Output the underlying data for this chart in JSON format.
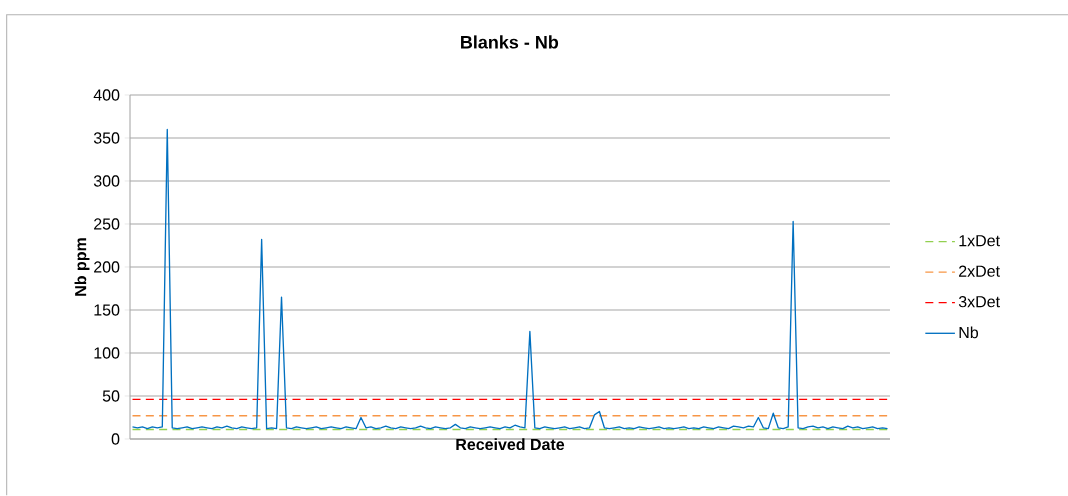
{
  "chart_data": {
    "type": "line",
    "title": "Blanks - Nb",
    "xlabel": "Received Date",
    "ylabel": "Nb ppm",
    "categories": [
      null,
      null,
      null,
      null,
      null,
      null,
      null,
      null,
      null,
      null,
      null,
      null,
      null,
      null,
      null,
      null,
      null,
      null,
      null,
      null,
      null,
      null,
      null,
      null,
      null,
      null,
      null,
      null,
      null,
      null,
      null,
      null,
      null,
      null,
      null,
      null,
      null,
      null,
      null,
      null,
      null,
      null,
      null,
      null,
      null,
      null,
      null,
      null,
      null,
      null,
      null,
      null,
      null,
      null,
      null,
      null,
      null,
      null,
      null,
      null,
      null,
      null,
      null,
      null,
      null,
      null,
      null,
      null,
      null,
      null,
      null,
      null,
      null,
      null,
      null,
      null,
      null,
      null,
      null,
      null,
      null,
      null,
      null,
      null,
      null,
      null,
      null,
      null,
      null,
      null,
      null,
      null,
      null,
      null,
      null,
      null,
      null,
      null,
      null,
      null,
      null,
      null,
      null,
      null,
      null,
      null,
      null,
      null,
      null,
      null,
      null,
      null,
      null,
      null,
      null,
      null,
      null,
      null,
      null,
      null,
      null,
      null,
      null,
      null,
      null,
      null,
      null,
      null,
      null,
      null,
      null,
      null,
      null,
      null,
      null,
      null,
      null,
      null,
      null,
      null,
      null,
      null,
      null,
      null,
      null,
      null,
      null,
      null,
      null,
      null,
      null,
      null,
      null
    ],
    "series": [
      {
        "name": "1xDet",
        "color": "#92d050",
        "line_style": "dashed",
        "values": [
          11,
          11,
          11,
          11,
          11,
          11,
          11,
          11,
          11,
          11,
          11,
          11,
          11,
          11,
          11,
          11,
          11,
          11,
          11,
          11,
          11,
          11,
          11,
          11,
          11,
          11,
          11,
          11,
          11,
          11,
          11,
          11,
          11,
          11,
          11,
          11,
          11,
          11,
          11,
          11,
          11,
          11,
          11,
          11,
          11,
          11,
          11,
          11,
          11,
          11,
          11,
          11,
          11,
          11,
          11,
          11,
          11,
          11,
          11,
          11,
          11,
          11,
          11,
          11,
          11,
          11,
          11,
          11,
          11,
          11,
          11,
          11,
          11,
          11,
          11,
          11,
          11,
          11,
          11,
          11,
          11,
          11,
          11,
          11,
          11,
          11,
          11,
          11,
          11,
          11,
          11,
          11,
          11,
          11,
          11,
          11,
          11,
          11,
          11,
          11,
          11,
          11,
          11,
          11,
          11,
          11,
          11,
          11,
          11,
          11,
          11,
          11,
          11,
          11,
          11,
          11,
          11,
          11,
          11,
          11,
          11,
          11,
          11,
          11,
          11,
          11,
          11,
          11,
          11,
          11,
          11,
          11,
          11,
          11,
          11,
          11,
          11,
          11,
          11,
          11,
          11,
          11,
          11,
          11,
          11,
          11,
          11,
          11,
          11,
          11,
          11,
          11,
          11
        ]
      },
      {
        "name": "2xDet",
        "color": "#f79646",
        "line_style": "dashed",
        "values": [
          27,
          27,
          27,
          27,
          27,
          27,
          27,
          27,
          27,
          27,
          27,
          27,
          27,
          27,
          27,
          27,
          27,
          27,
          27,
          27,
          27,
          27,
          27,
          27,
          27,
          27,
          27,
          27,
          27,
          27,
          27,
          27,
          27,
          27,
          27,
          27,
          27,
          27,
          27,
          27,
          27,
          27,
          27,
          27,
          27,
          27,
          27,
          27,
          27,
          27,
          27,
          27,
          27,
          27,
          27,
          27,
          27,
          27,
          27,
          27,
          27,
          27,
          27,
          27,
          27,
          27,
          27,
          27,
          27,
          27,
          27,
          27,
          27,
          27,
          27,
          27,
          27,
          27,
          27,
          27,
          27,
          27,
          27,
          27,
          27,
          27,
          27,
          27,
          27,
          27,
          27,
          27,
          27,
          27,
          27,
          27,
          27,
          27,
          27,
          27,
          27,
          27,
          27,
          27,
          27,
          27,
          27,
          27,
          27,
          27,
          27,
          27,
          27,
          27,
          27,
          27,
          27,
          27,
          27,
          27,
          27,
          27,
          27,
          27,
          27,
          27,
          27,
          27,
          27,
          27,
          27,
          27,
          27,
          27,
          27,
          27,
          27,
          27,
          27,
          27,
          27,
          27,
          27,
          27,
          27,
          27,
          27,
          27,
          27,
          27,
          27,
          27,
          27
        ]
      },
      {
        "name": "3xDet",
        "color": "#ff0000",
        "line_style": "dashed",
        "values": [
          46,
          46,
          46,
          46,
          46,
          46,
          46,
          46,
          46,
          46,
          46,
          46,
          46,
          46,
          46,
          46,
          46,
          46,
          46,
          46,
          46,
          46,
          46,
          46,
          46,
          46,
          46,
          46,
          46,
          46,
          46,
          46,
          46,
          46,
          46,
          46,
          46,
          46,
          46,
          46,
          46,
          46,
          46,
          46,
          46,
          46,
          46,
          46,
          46,
          46,
          46,
          46,
          46,
          46,
          46,
          46,
          46,
          46,
          46,
          46,
          46,
          46,
          46,
          46,
          46,
          46,
          46,
          46,
          46,
          46,
          46,
          46,
          46,
          46,
          46,
          46,
          46,
          46,
          46,
          46,
          46,
          46,
          46,
          46,
          46,
          46,
          46,
          46,
          46,
          46,
          46,
          46,
          46,
          46,
          46,
          46,
          46,
          46,
          46,
          46,
          46,
          46,
          46,
          46,
          46,
          46,
          46,
          46,
          46,
          46,
          46,
          46,
          46,
          46,
          46,
          46,
          46,
          46,
          46,
          46,
          46,
          46,
          46,
          46,
          46,
          46,
          46,
          46,
          46,
          46,
          46,
          46,
          46,
          46,
          46,
          46,
          46,
          46,
          46,
          46,
          46,
          46,
          46,
          46,
          46,
          46,
          46,
          46,
          46,
          46,
          46,
          46,
          46
        ]
      },
      {
        "name": "Nb",
        "color": "#0070c0",
        "line_style": "solid",
        "values": [
          14,
          13,
          14,
          12,
          14,
          13,
          14,
          360,
          13,
          12,
          13,
          14,
          12,
          13,
          14,
          13,
          12,
          14,
          13,
          15,
          13,
          12,
          14,
          13,
          12,
          13,
          232,
          12,
          13,
          12,
          165,
          13,
          12,
          14,
          13,
          12,
          13,
          14,
          12,
          13,
          14,
          13,
          12,
          14,
          13,
          12,
          25,
          13,
          14,
          12,
          13,
          15,
          13,
          12,
          14,
          13,
          12,
          13,
          15,
          13,
          12,
          14,
          13,
          12,
          13,
          17,
          13,
          12,
          14,
          13,
          12,
          13,
          14,
          13,
          12,
          14,
          13,
          16,
          14,
          13,
          125,
          13,
          12,
          14,
          13,
          12,
          13,
          14,
          12,
          13,
          14,
          12,
          13,
          28,
          32,
          13,
          12,
          13,
          14,
          12,
          13,
          12,
          14,
          13,
          12,
          13,
          14,
          12,
          13,
          12,
          13,
          14,
          12,
          13,
          12,
          14,
          13,
          12,
          14,
          13,
          12,
          15,
          14,
          13,
          15,
          14,
          25,
          13,
          12,
          30,
          13,
          12,
          14,
          253,
          13,
          12,
          14,
          15,
          13,
          14,
          12,
          14,
          13,
          12,
          15,
          13,
          14,
          12,
          13,
          14,
          12,
          13,
          12
        ]
      }
    ],
    "ylim": [
      0,
      400
    ],
    "yticks": [
      0,
      50,
      100,
      150,
      200,
      250,
      300,
      350,
      400
    ],
    "grid": "y",
    "legend": "right",
    "tick_labels": "y",
    "marker": "none"
  }
}
